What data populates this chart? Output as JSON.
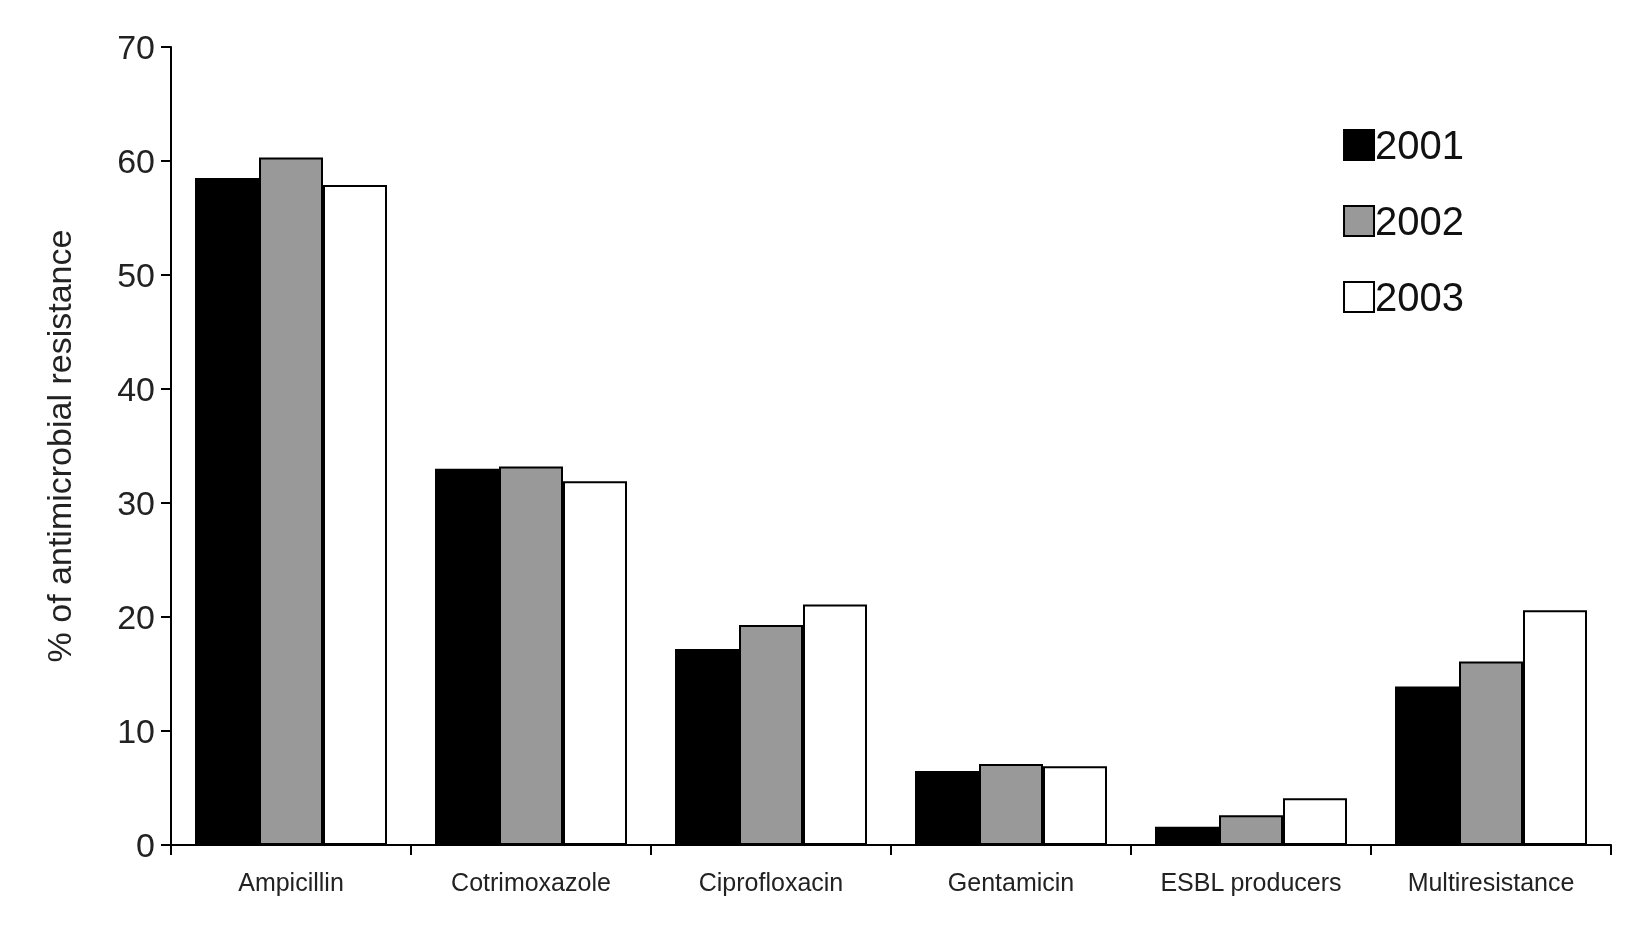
{
  "chart_data": {
    "type": "bar",
    "ylabel": "% of antimicrobial resistance",
    "categories": [
      "Ampicillin",
      "Cotrimoxazole",
      "Ciprofloxacin",
      "Gentamicin",
      "ESBL producers",
      "Multiresistance"
    ],
    "series": [
      {
        "name": "2001",
        "color": "#000000",
        "values": [
          58.5,
          33.0,
          17.2,
          6.5,
          1.6,
          13.9
        ]
      },
      {
        "name": "2002",
        "color": "#999999",
        "values": [
          60.3,
          33.2,
          19.3,
          7.1,
          2.6,
          16.1
        ]
      },
      {
        "name": "2003",
        "color": "#ffffff",
        "values": [
          57.9,
          31.9,
          21.1,
          6.9,
          4.1,
          20.6
        ]
      }
    ],
    "ylim": [
      0,
      70
    ],
    "yticks": [
      0,
      10,
      20,
      30,
      40,
      50,
      60,
      70
    ],
    "grid": false,
    "legend": "top right"
  }
}
